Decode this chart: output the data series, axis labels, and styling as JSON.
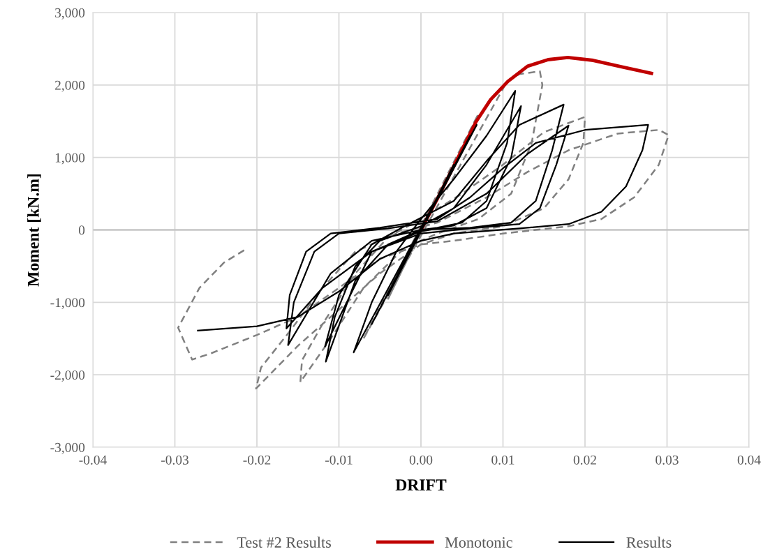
{
  "chart_data": {
    "type": "line",
    "xlabel": "DRIFT",
    "ylabel": "Moment [kN.m]",
    "xlim": [
      -0.04,
      0.04
    ],
    "ylim": [
      -3000,
      3000
    ],
    "xticks": [
      {
        "value": -0.04,
        "label": "-0.04"
      },
      {
        "value": -0.03,
        "label": "-0.03"
      },
      {
        "value": -0.02,
        "label": "-0.02"
      },
      {
        "value": -0.01,
        "label": "-0.01"
      },
      {
        "value": 0,
        "label": "0.00"
      },
      {
        "value": 0.01,
        "label": "0.01"
      },
      {
        "value": 0.02,
        "label": "0.02"
      },
      {
        "value": 0.03,
        "label": "0.03"
      },
      {
        "value": 0.04,
        "label": "0.04"
      }
    ],
    "yticks": [
      {
        "value": -3000,
        "label": "-3,000"
      },
      {
        "value": -2000,
        "label": "-2,000"
      },
      {
        "value": -1000,
        "label": "-1,000"
      },
      0,
      {
        "value": 1000,
        "label": "1,000"
      },
      {
        "value": 2000,
        "label": "2,000"
      },
      {
        "value": 3000,
        "label": "3,000"
      }
    ],
    "grid": true,
    "legend": "bottom",
    "marker": "none",
    "series": [
      {
        "name": "Test #2 Results",
        "color": "#808080",
        "line_style": "dashed",
        "x": [
          0,
          0.004,
          -0.004,
          0.007,
          -0.007,
          0.0105,
          0.012,
          0.0145,
          0.0148,
          0.0135,
          0.011,
          0.007,
          0.002,
          -0.002,
          -0.007,
          -0.011,
          -0.0147,
          -0.0145,
          -0.012,
          -0.008,
          -0.004,
          0,
          0.005,
          0.01,
          0.015,
          0.02,
          0.0198,
          0.018,
          0.015,
          0.01,
          0.004,
          0,
          -0.005,
          -0.01,
          -0.015,
          -0.0201,
          -0.0195,
          -0.016,
          -0.012,
          -0.008,
          -0.003,
          0.002,
          0.008,
          0.013,
          0.018,
          0.024,
          0.029,
          0.0302,
          0.029,
          0.026,
          0.022,
          0.018,
          0.01,
          0.004,
          0,
          -0.005,
          -0.01,
          -0.015,
          -0.02,
          -0.0255,
          -0.0279,
          -0.0296,
          -0.027,
          -0.024,
          -0.0214
        ],
        "values": [
          0,
          900,
          -950,
          1600,
          -1500,
          2050,
          2150,
          2190,
          2000,
          1200,
          500,
          150,
          -50,
          -250,
          -800,
          -1500,
          -2100,
          -1800,
          -1300,
          -600,
          -100,
          150,
          500,
          900,
          1350,
          1560,
          1200,
          700,
          300,
          50,
          -50,
          -200,
          -600,
          -1100,
          -1600,
          -2190,
          -1900,
          -1400,
          -800,
          -300,
          -50,
          100,
          450,
          800,
          1100,
          1330,
          1380,
          1310,
          900,
          450,
          150,
          50,
          -50,
          -150,
          -200,
          -400,
          -800,
          -1200,
          -1450,
          -1700,
          -1790,
          -1350,
          -800,
          -450,
          -270
        ]
      },
      {
        "name": "Monotonic",
        "color": "#c00000",
        "line_style": "solid",
        "x": [
          0,
          0.002,
          0.004,
          0.0067,
          0.0085,
          0.0106,
          0.013,
          0.0155,
          0.0179,
          0.021,
          0.0245,
          0.0281
        ],
        "values": [
          0,
          430,
          880,
          1490,
          1800,
          2050,
          2260,
          2350,
          2380,
          2340,
          2250,
          2160
        ]
      },
      {
        "name": "Results",
        "color": "#000000",
        "line_style": "solid",
        "x": [
          0,
          0.004,
          -0.004,
          0.006,
          -0.006,
          0.0068,
          -0.0082,
          -0.006,
          -0.003,
          0,
          0.004,
          0.008,
          0.0115,
          0.0105,
          0.008,
          0.005,
          0.002,
          0,
          -0.004,
          -0.008,
          -0.0116,
          -0.0105,
          -0.008,
          -0.005,
          0,
          0.004,
          0.008,
          0.0122,
          0.011,
          0.008,
          0.004,
          0,
          -0.006,
          -0.0117,
          -0.01,
          -0.006,
          -0.002,
          0.004,
          0.008,
          0.012,
          0.0174,
          0.016,
          0.014,
          0.011,
          0.006,
          0,
          -0.006,
          -0.011,
          -0.0162,
          -0.0155,
          -0.013,
          -0.01,
          -0.004,
          0.002,
          0.008,
          0.013,
          0.018,
          0.0165,
          0.0145,
          0.012,
          0.006,
          0,
          -0.006,
          -0.012,
          -0.0164,
          -0.016,
          -0.014,
          -0.011,
          -0.005,
          0.002,
          0.006,
          0.01,
          0.014,
          0.02,
          0.0277,
          0.027,
          0.025,
          0.022,
          0.018,
          0.012,
          0.004,
          0,
          -0.005,
          -0.01,
          -0.015,
          -0.02,
          -0.0272
        ],
        "values": [
          0,
          900,
          -900,
          1300,
          -1300,
          1450,
          -1690,
          -1000,
          -300,
          150,
          700,
          1300,
          1920,
          1200,
          400,
          100,
          30,
          0,
          -200,
          -700,
          -1820,
          -1200,
          -500,
          -150,
          50,
          300,
          900,
          1710,
          1000,
          300,
          60,
          -20,
          -300,
          -1610,
          -900,
          -200,
          50,
          400,
          950,
          1450,
          1730,
          1100,
          400,
          100,
          30,
          0,
          -150,
          -600,
          -1590,
          -1000,
          -300,
          -50,
          20,
          120,
          500,
          1050,
          1440,
          900,
          300,
          80,
          20,
          -50,
          -300,
          -800,
          -1360,
          -900,
          -300,
          -50,
          30,
          150,
          450,
          850,
          1200,
          1380,
          1450,
          1100,
          600,
          250,
          80,
          20,
          -50,
          -150,
          -400,
          -850,
          -1200,
          -1330,
          -1390
        ]
      }
    ]
  }
}
